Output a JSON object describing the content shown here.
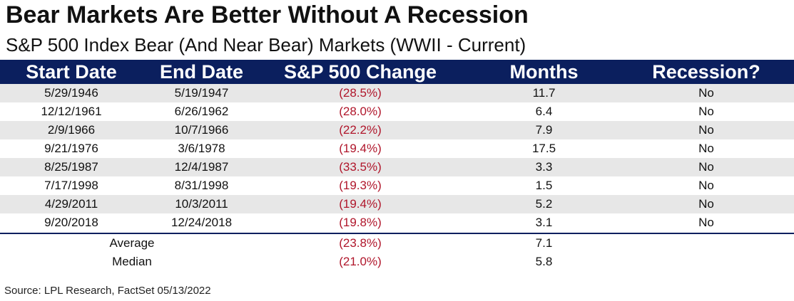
{
  "chart_data": {
    "type": "table",
    "title": "Bear Markets Are Better Without A Recession",
    "subtitle": "S&P 500 Index Bear (And Near Bear) Markets (WWII - Current)",
    "columns": [
      "Start Date",
      "End Date",
      "S&P 500 Change",
      "Months",
      "Recession?"
    ],
    "rows": [
      {
        "start": "5/29/1946",
        "end": "5/19/1947",
        "change": "(28.5%)",
        "months": "11.7",
        "recession": "No"
      },
      {
        "start": "12/12/1961",
        "end": "6/26/1962",
        "change": "(28.0%)",
        "months": "6.4",
        "recession": "No"
      },
      {
        "start": "2/9/1966",
        "end": "10/7/1966",
        "change": "(22.2%)",
        "months": "7.9",
        "recession": "No"
      },
      {
        "start": "9/21/1976",
        "end": "3/6/1978",
        "change": "(19.4%)",
        "months": "17.5",
        "recession": "No"
      },
      {
        "start": "8/25/1987",
        "end": "12/4/1987",
        "change": "(33.5%)",
        "months": "3.3",
        "recession": "No"
      },
      {
        "start": "7/17/1998",
        "end": "8/31/1998",
        "change": "(19.3%)",
        "months": "1.5",
        "recession": "No"
      },
      {
        "start": "4/29/2011",
        "end": "10/3/2011",
        "change": "(19.4%)",
        "months": "5.2",
        "recession": "No"
      },
      {
        "start": "9/20/2018",
        "end": "12/24/2018",
        "change": "(19.8%)",
        "months": "3.1",
        "recession": "No"
      }
    ],
    "summary": [
      {
        "label": "Average",
        "change": "(23.8%)",
        "months": "7.1"
      },
      {
        "label": "Median",
        "change": "(21.0%)",
        "months": "5.8"
      }
    ],
    "source": "Source: LPL Research, FactSet 05/13/2022"
  },
  "colors": {
    "header_bg": "#0b1f5e",
    "header_text": "#ffffff",
    "negative": "#b0162b",
    "row_shade": "#e7e7e7"
  }
}
